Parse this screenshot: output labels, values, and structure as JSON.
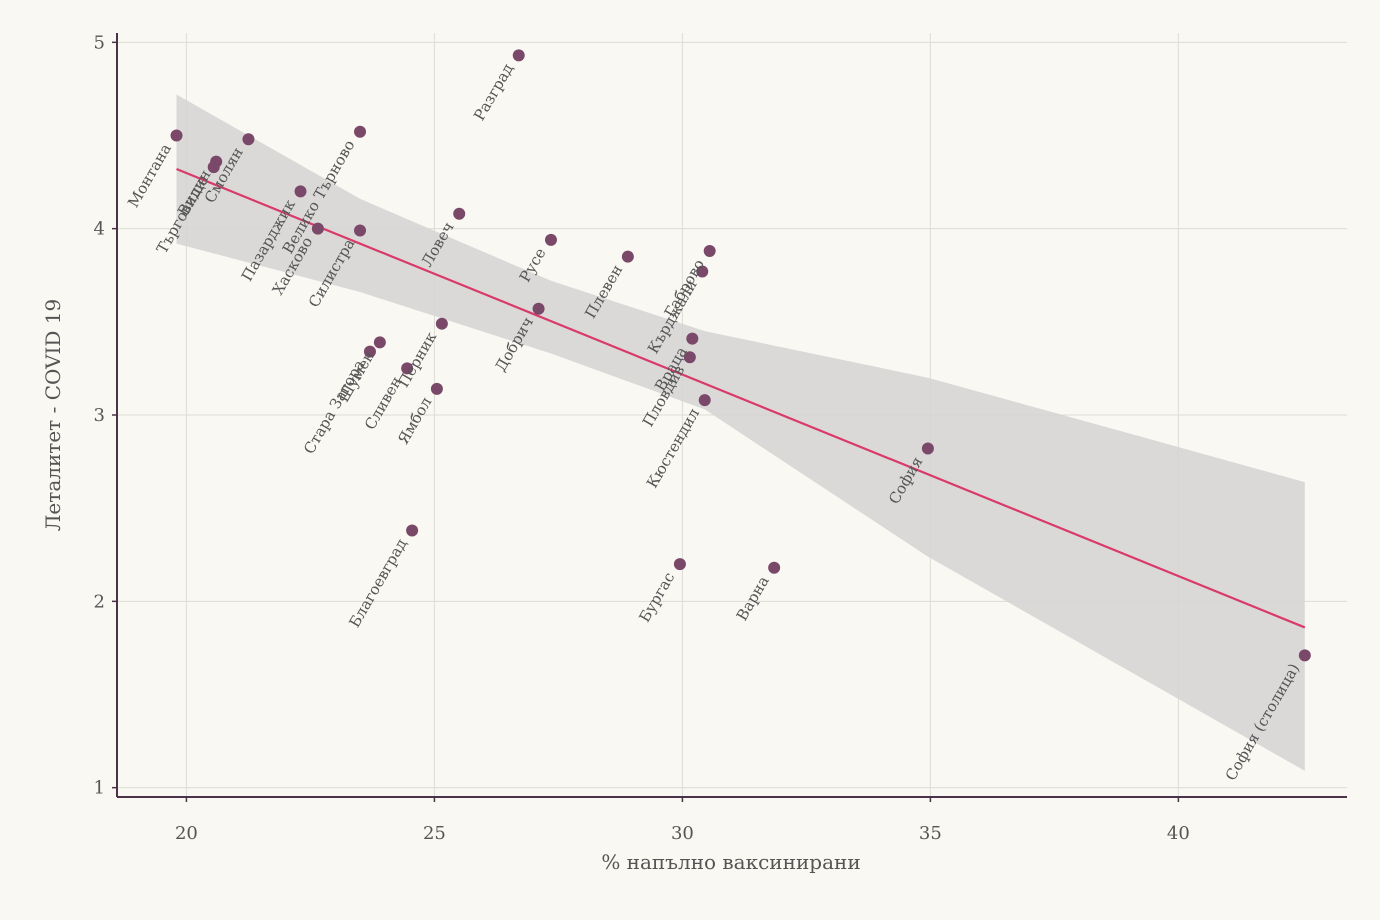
{
  "chart_data": {
    "type": "scatter",
    "xlabel": "% напълно ваксинирани",
    "ylabel": "Леталитет - COVID 19",
    "xlim": [
      18.6,
      43.4
    ],
    "ylim": [
      0.95,
      5.05
    ],
    "x_ticks": [
      20,
      25,
      30,
      35,
      40
    ],
    "y_ticks": [
      1,
      2,
      3,
      4,
      5
    ],
    "grid": true,
    "colors": {
      "background": "#faf8f2",
      "points": "#7a4868",
      "trend_line": "#d93a6a",
      "confidence_band": "#d4d4d4",
      "axis": "#4a3248",
      "grid": "#dddcd5"
    },
    "points": [
      {
        "label": "Монтана",
        "x": 19.8,
        "y": 4.5
      },
      {
        "label": "Търговище",
        "x": 20.55,
        "y": 4.33
      },
      {
        "label": "Видин",
        "x": 20.6,
        "y": 4.36
      },
      {
        "label": "Смолян",
        "x": 21.25,
        "y": 4.48
      },
      {
        "label": "Пазарджик",
        "x": 22.3,
        "y": 4.2
      },
      {
        "label": "Хасково",
        "x": 22.65,
        "y": 4.0
      },
      {
        "label": "Велико Търново",
        "x": 23.5,
        "y": 4.52
      },
      {
        "label": "Силистра",
        "x": 23.5,
        "y": 3.99
      },
      {
        "label": "Стара Загора",
        "x": 23.7,
        "y": 3.34
      },
      {
        "label": "Шумен",
        "x": 23.9,
        "y": 3.39
      },
      {
        "label": "Сливен",
        "x": 24.45,
        "y": 3.25
      },
      {
        "label": "Благоевград",
        "x": 24.55,
        "y": 2.38
      },
      {
        "label": "Ямбол",
        "x": 25.05,
        "y": 3.14
      },
      {
        "label": "Перник",
        "x": 25.15,
        "y": 3.49
      },
      {
        "label": "Ловеч",
        "x": 25.5,
        "y": 4.08
      },
      {
        "label": "Разград",
        "x": 26.7,
        "y": 4.93
      },
      {
        "label": "Добрич",
        "x": 27.1,
        "y": 3.57
      },
      {
        "label": "Русе",
        "x": 27.35,
        "y": 3.94
      },
      {
        "label": "Плевен",
        "x": 28.9,
        "y": 3.85
      },
      {
        "label": "Бургас",
        "x": 29.95,
        "y": 2.2
      },
      {
        "label": "Пловдив",
        "x": 30.15,
        "y": 3.31
      },
      {
        "label": "Враца",
        "x": 30.2,
        "y": 3.41
      },
      {
        "label": "Кърджали",
        "x": 30.4,
        "y": 3.77
      },
      {
        "label": "Кюстендил",
        "x": 30.45,
        "y": 3.08
      },
      {
        "label": "Габрово",
        "x": 30.55,
        "y": 3.88
      },
      {
        "label": "Варна",
        "x": 31.85,
        "y": 2.18
      },
      {
        "label": "София",
        "x": 34.95,
        "y": 2.82
      },
      {
        "label": "София (столица)",
        "x": 42.55,
        "y": 1.71
      }
    ],
    "trend_line": {
      "x": [
        19.8,
        42.55
      ],
      "y": [
        4.32,
        1.86
      ]
    },
    "confidence_band": {
      "x": [
        19.8,
        23.5,
        27.35,
        30.45,
        34.95,
        42.55
      ],
      "upper": [
        4.72,
        4.16,
        3.72,
        3.45,
        3.2,
        2.64
      ],
      "lower": [
        3.92,
        3.66,
        3.33,
        3.03,
        2.24,
        1.09
      ]
    }
  }
}
